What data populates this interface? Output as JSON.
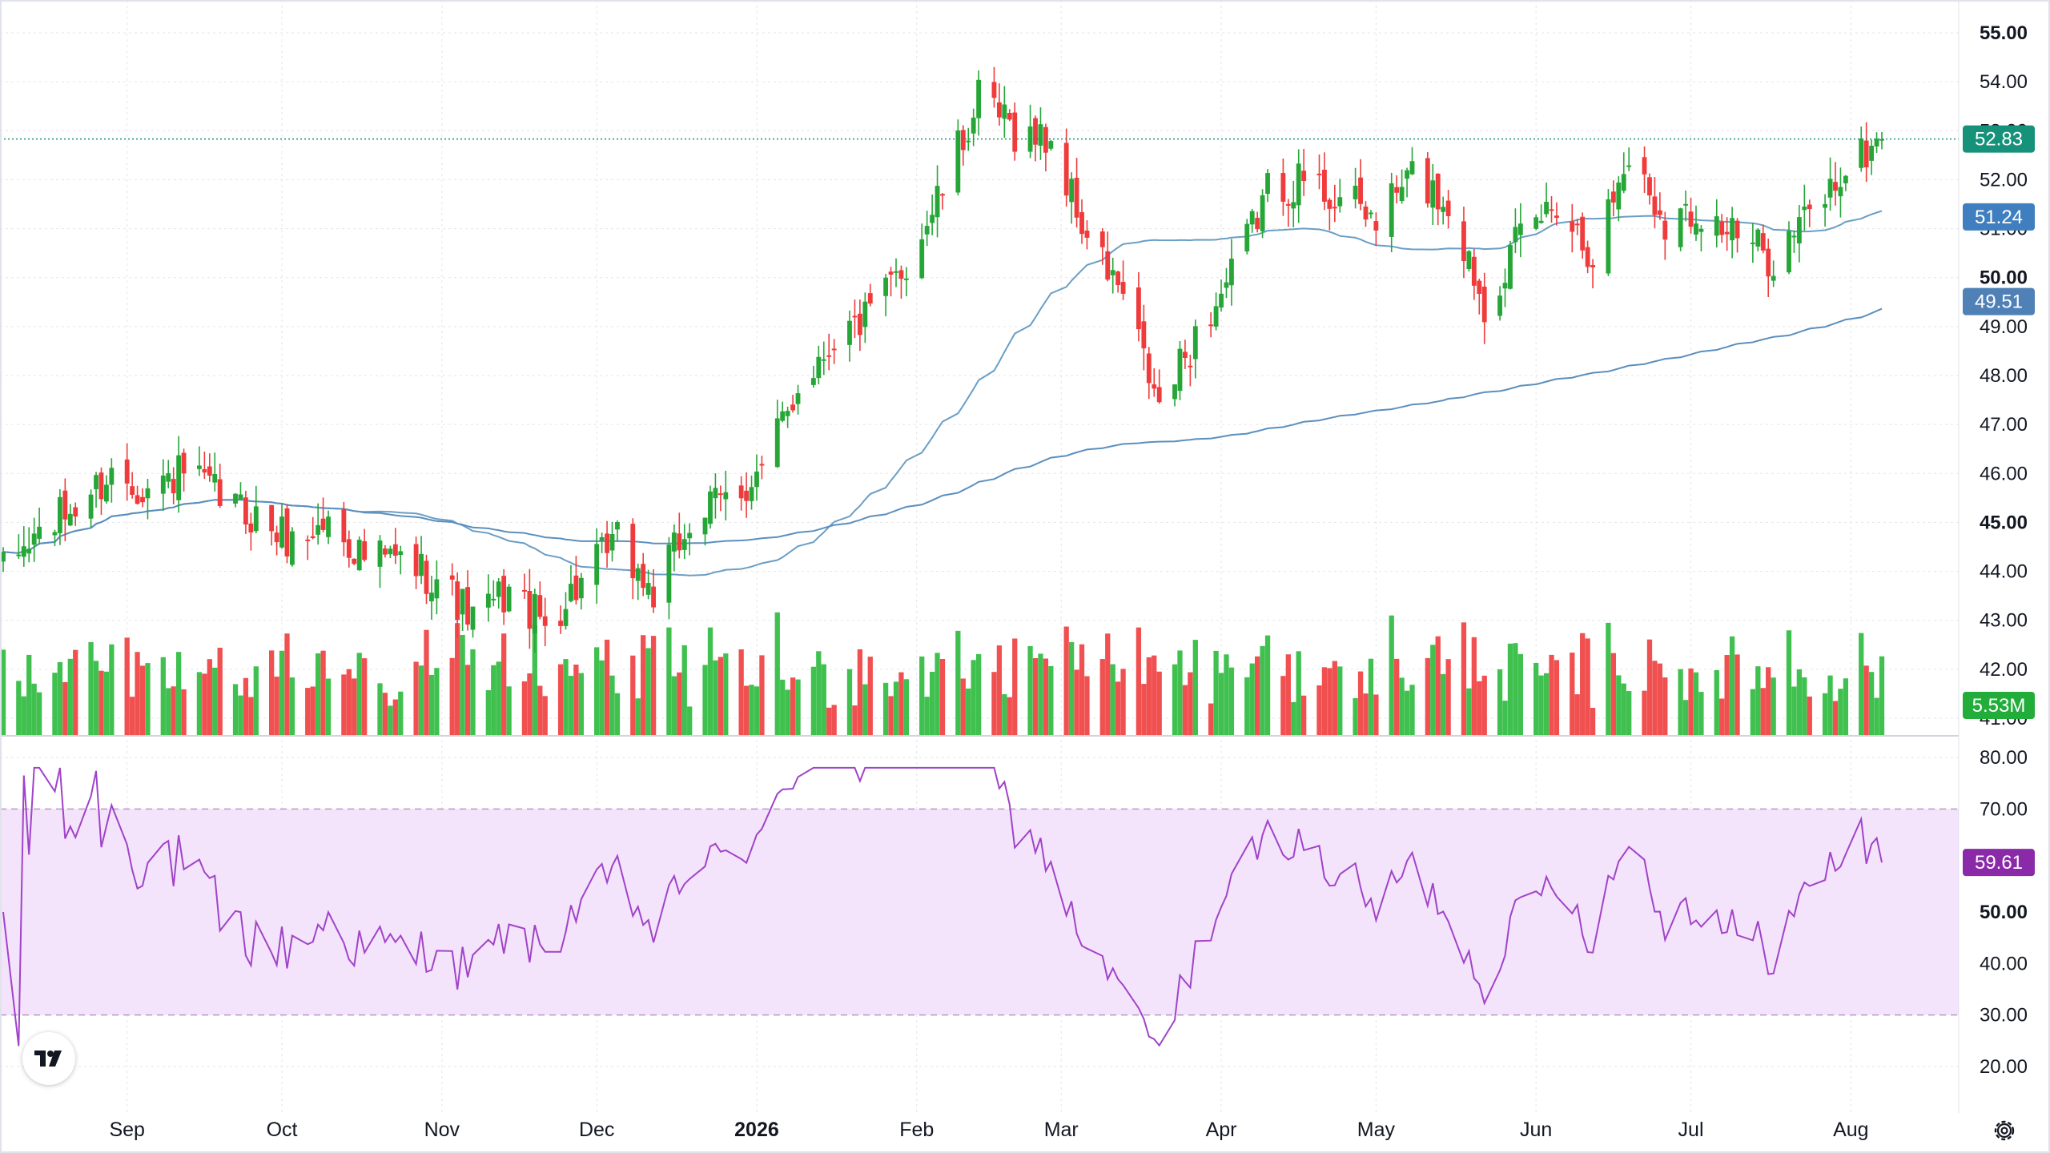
{
  "colors": {
    "up": "#26a637",
    "down": "#ef3b3b",
    "volume_up": "#3fc04f",
    "volume_down": "#f05050",
    "ma_short": "#6a9ec5",
    "ma_long": "#5b8fbe",
    "last_price_badge": "#16917a",
    "ma_short_badge": "#3f7fbf",
    "ma_long_badge": "#4f80b6",
    "volume_badge": "#22ad3a",
    "rsi_line": "#a043c8",
    "rsi_band": "#f3e3fb",
    "rsi_badge": "#8a2aa8",
    "grid": "#e3e5ea"
  },
  "price_axis": {
    "labels": [
      "55.00",
      "54.00",
      "53.00",
      "52.00",
      "51.00",
      "50.00",
      "49.00",
      "48.00",
      "47.00",
      "46.00",
      "45.00",
      "44.00",
      "43.00",
      "42.00",
      "41.00"
    ],
    "major": [
      "55.00",
      "50.00",
      "45.00"
    ]
  },
  "rsi_axis": {
    "labels": [
      "80.00",
      "70.00",
      "60.00",
      "50.00",
      "40.00",
      "30.00",
      "20.00"
    ],
    "major": [
      "50.00"
    ]
  },
  "time_axis": {
    "labels": [
      "Sep",
      "Oct",
      "Nov",
      "Dec",
      "2026",
      "Feb",
      "Mar",
      "Apr",
      "May",
      "Jun",
      "Jul",
      "Aug"
    ],
    "major": [
      "2026"
    ]
  },
  "badges": {
    "last_price": "52.83",
    "ma_short": "51.24",
    "ma_long": "49.51",
    "volume": "5.53M",
    "rsi": "59.61"
  },
  "icons": {
    "logo": "tradingview-logo-icon",
    "settings": "gear-icon"
  },
  "chart_data": {
    "type": "candlestick",
    "x_range": [
      "2025-08-08",
      "2026-08-07"
    ],
    "y_range": [
      41,
      55
    ],
    "grid": true,
    "price_anchors": [
      [
        "2025-08-08",
        44.0
      ],
      [
        "2025-08-15",
        44.8
      ],
      [
        "2025-08-22",
        45.3
      ],
      [
        "2025-08-29",
        46.0
      ],
      [
        "2025-09-05",
        45.7
      ],
      [
        "2025-09-12",
        46.0
      ],
      [
        "2025-09-19",
        45.5
      ],
      [
        "2025-09-26",
        45.1
      ],
      [
        "2025-10-03",
        44.6
      ],
      [
        "2025-10-10",
        45.0
      ],
      [
        "2025-10-17",
        44.3
      ],
      [
        "2025-10-24",
        44.2
      ],
      [
        "2025-10-31",
        43.9
      ],
      [
        "2025-11-07",
        43.0
      ],
      [
        "2025-11-14",
        43.6
      ],
      [
        "2025-11-21",
        42.9
      ],
      [
        "2025-11-28",
        43.8
      ],
      [
        "2025-12-05",
        44.6
      ],
      [
        "2025-12-12",
        43.5
      ],
      [
        "2025-12-19",
        45.0
      ],
      [
        "2025-12-26",
        45.5
      ],
      [
        "2026-01-02",
        46.0
      ],
      [
        "2026-01-09",
        47.8
      ],
      [
        "2026-01-16",
        48.8
      ],
      [
        "2026-01-23",
        49.2
      ],
      [
        "2026-01-30",
        50.3
      ],
      [
        "2026-02-06",
        51.8
      ],
      [
        "2026-02-13",
        53.6
      ],
      [
        "2026-02-20",
        53.0
      ],
      [
        "2026-02-27",
        52.8
      ],
      [
        "2026-03-06",
        50.8
      ],
      [
        "2026-03-13",
        49.6
      ],
      [
        "2026-03-20",
        47.3
      ],
      [
        "2026-03-27",
        48.8
      ],
      [
        "2026-04-03",
        50.0
      ],
      [
        "2026-04-10",
        51.8
      ],
      [
        "2026-04-17",
        52.0
      ],
      [
        "2026-04-24",
        51.6
      ],
      [
        "2026-05-01",
        51.2
      ],
      [
        "2026-05-08",
        52.1
      ],
      [
        "2026-05-15",
        51.5
      ],
      [
        "2026-05-22",
        49.5
      ],
      [
        "2026-05-29",
        50.8
      ],
      [
        "2026-06-05",
        51.6
      ],
      [
        "2026-06-12",
        50.5
      ],
      [
        "2026-06-19",
        52.5
      ],
      [
        "2026-06-26",
        51.2
      ],
      [
        "2026-07-03",
        51.4
      ],
      [
        "2026-07-10",
        50.8
      ],
      [
        "2026-07-17",
        50.4
      ],
      [
        "2026-07-24",
        51.3
      ],
      [
        "2026-07-31",
        52.2
      ],
      [
        "2026-08-07",
        52.83
      ]
    ],
    "ma_short": {
      "name": "",
      "last": 51.24
    },
    "ma_long": {
      "name": "",
      "last": 49.51
    },
    "volume": {
      "last": "5.53M"
    },
    "rsi": {
      "y_range": [
        20,
        80
      ],
      "band": [
        30,
        70
      ],
      "last": 59.61
    }
  }
}
